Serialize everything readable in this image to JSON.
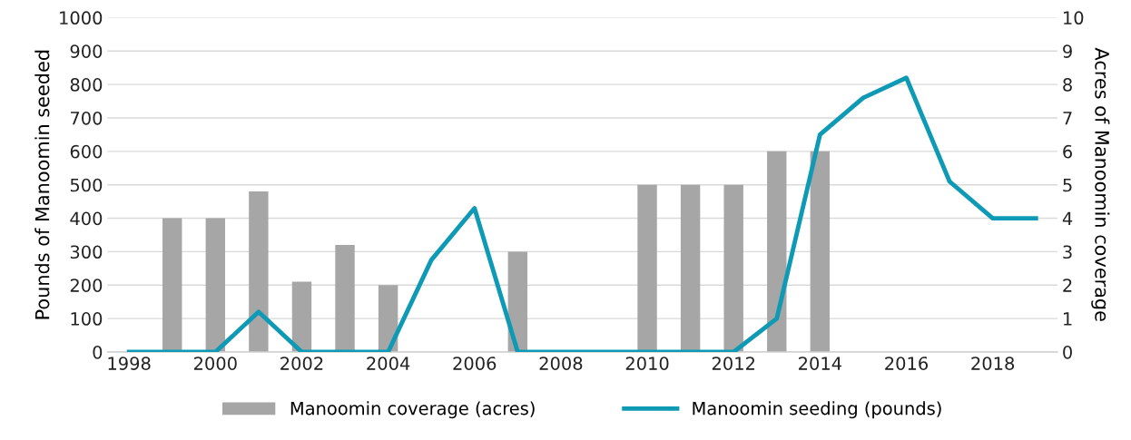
{
  "chart_data": {
    "type": "bar",
    "categories": [
      "1998",
      null,
      "2000",
      null,
      "2002",
      null,
      "2004",
      null,
      "2006",
      null,
      "2008",
      null,
      "2010",
      null,
      "2012",
      null,
      "2014",
      null,
      "2016",
      null,
      "2018",
      null
    ],
    "series": [
      {
        "name": "Manoomin coverage (acres)",
        "axis": "y2",
        "color": "#a6a6a6",
        "values": [
          null,
          4,
          4,
          4.8,
          2.1,
          3.2,
          2,
          null,
          null,
          3,
          null,
          null,
          5,
          5,
          5,
          6,
          6,
          null,
          null,
          null,
          null,
          null
        ]
      },
      {
        "name": "Manoomin seeding (pounds)",
        "type": "line",
        "color": "#0e9ab5",
        "values": [
          0,
          0,
          0,
          120,
          0,
          0,
          0,
          275,
          430,
          0,
          0,
          0,
          0,
          0,
          0,
          100,
          650,
          760,
          820,
          510,
          400,
          400
        ]
      }
    ],
    "ylabel": "Pounds of Manoomin seeded",
    "y2label": "Acres of Manoomin coverage",
    "ylim": [
      0,
      1000
    ],
    "yticks": [
      0,
      100,
      200,
      300,
      400,
      500,
      600,
      700,
      800,
      900,
      1000
    ],
    "y2lim": [
      0,
      10
    ],
    "y2ticks": [
      0,
      1,
      2,
      3,
      4,
      5,
      6,
      7,
      8,
      9,
      10
    ],
    "grid": "y",
    "legend": "bottom",
    "line_style": "solid",
    "marker": "none"
  }
}
